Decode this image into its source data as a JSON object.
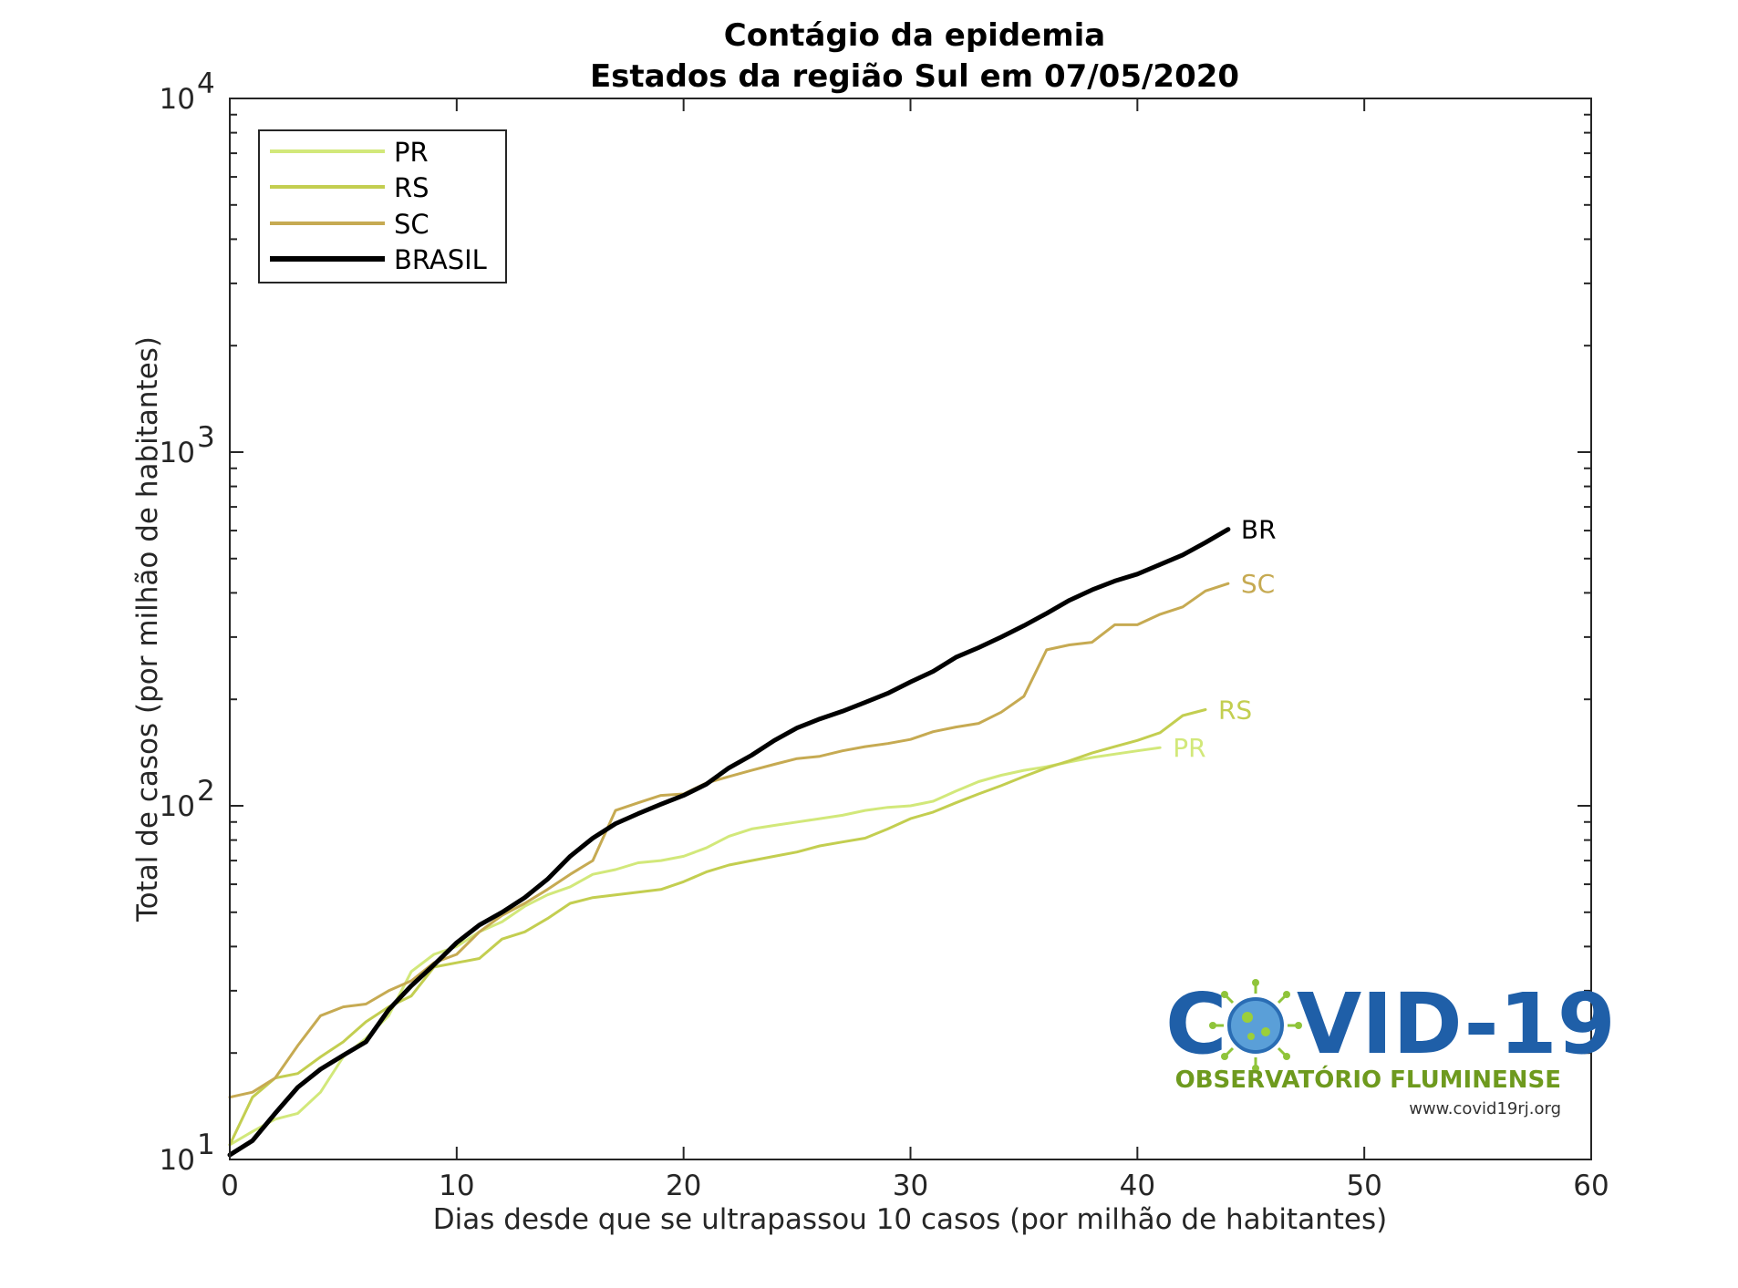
{
  "chart_data": {
    "type": "line",
    "title": "Contágio da epidemia",
    "subtitle": "Estados da região Sul em 07/05/2020",
    "xlabel": "Dias desde que se ultrapassou 10 casos (por milhão de habitantes)",
    "ylabel": "Total de casos (por milhão de habitantes)",
    "xlim": [
      0,
      60
    ],
    "ylim": [
      10,
      10000
    ],
    "yscale": "log",
    "xticks": [
      "0",
      "10",
      "20",
      "30",
      "40",
      "50",
      "60"
    ],
    "yticks": [
      {
        "base": "10",
        "exp": "1"
      },
      {
        "base": "10",
        "exp": "2"
      },
      {
        "base": "10",
        "exp": "3"
      },
      {
        "base": "10",
        "exp": "4"
      }
    ],
    "grid": false,
    "legend_position": "top-left",
    "series": [
      {
        "name": "PR",
        "end_label": "PR",
        "color": "#d2e87a",
        "width": 3,
        "y": [
          11,
          12,
          13,
          13.5,
          15.5,
          19.5,
          22,
          25.5,
          34,
          38,
          40,
          44,
          47,
          52,
          56,
          59,
          64,
          66,
          69,
          70,
          72,
          76,
          82,
          86,
          88,
          90,
          92,
          94,
          97,
          99,
          100,
          103,
          110,
          117,
          122,
          126,
          129,
          133,
          137,
          140,
          143,
          146
        ]
      },
      {
        "name": "RS",
        "end_label": "RS",
        "color": "#c3ce50",
        "width": 3,
        "y": [
          11,
          15,
          17,
          17.5,
          19.5,
          21.5,
          24.5,
          27,
          29,
          35,
          36,
          37,
          42,
          44,
          48,
          53,
          55,
          56,
          57,
          58,
          61,
          65,
          68,
          70,
          72,
          74,
          77,
          79,
          81,
          86,
          92,
          96,
          102,
          108,
          114,
          121,
          128,
          134,
          141,
          147,
          153,
          161,
          180,
          187
        ]
      },
      {
        "name": "SC",
        "end_label": "SC",
        "color": "#c6aa52",
        "width": 3,
        "y": [
          15,
          15.5,
          17,
          21,
          25.5,
          27,
          27.5,
          30,
          32,
          36,
          38,
          44,
          49,
          53,
          58,
          64,
          70,
          97,
          102,
          107,
          108,
          116,
          121,
          126,
          131,
          136,
          138,
          143,
          147,
          150,
          154,
          162,
          167,
          171,
          184,
          204,
          276,
          285,
          290,
          325,
          325,
          348,
          365,
          405,
          425
        ]
      },
      {
        "name": "BRASIL",
        "end_label": "BR",
        "color": "#000000",
        "width": 5,
        "y": [
          10.3,
          11.3,
          13.5,
          16,
          18,
          19.7,
          21.5,
          26.5,
          31,
          35.5,
          41,
          46,
          50,
          55,
          62,
          72,
          81,
          89,
          95,
          101,
          107,
          115,
          128,
          139,
          153,
          166,
          176,
          185,
          196,
          208,
          224,
          240,
          263,
          280,
          300,
          323,
          350,
          381,
          408,
          432,
          452,
          481,
          512,
          555,
          605
        ]
      }
    ]
  },
  "logo": {
    "word1": "C",
    "word2": "VID-19",
    "subtitle": "OBSERVATÓRIO FLUMINENSE",
    "url": "www.covid19rj.org"
  }
}
